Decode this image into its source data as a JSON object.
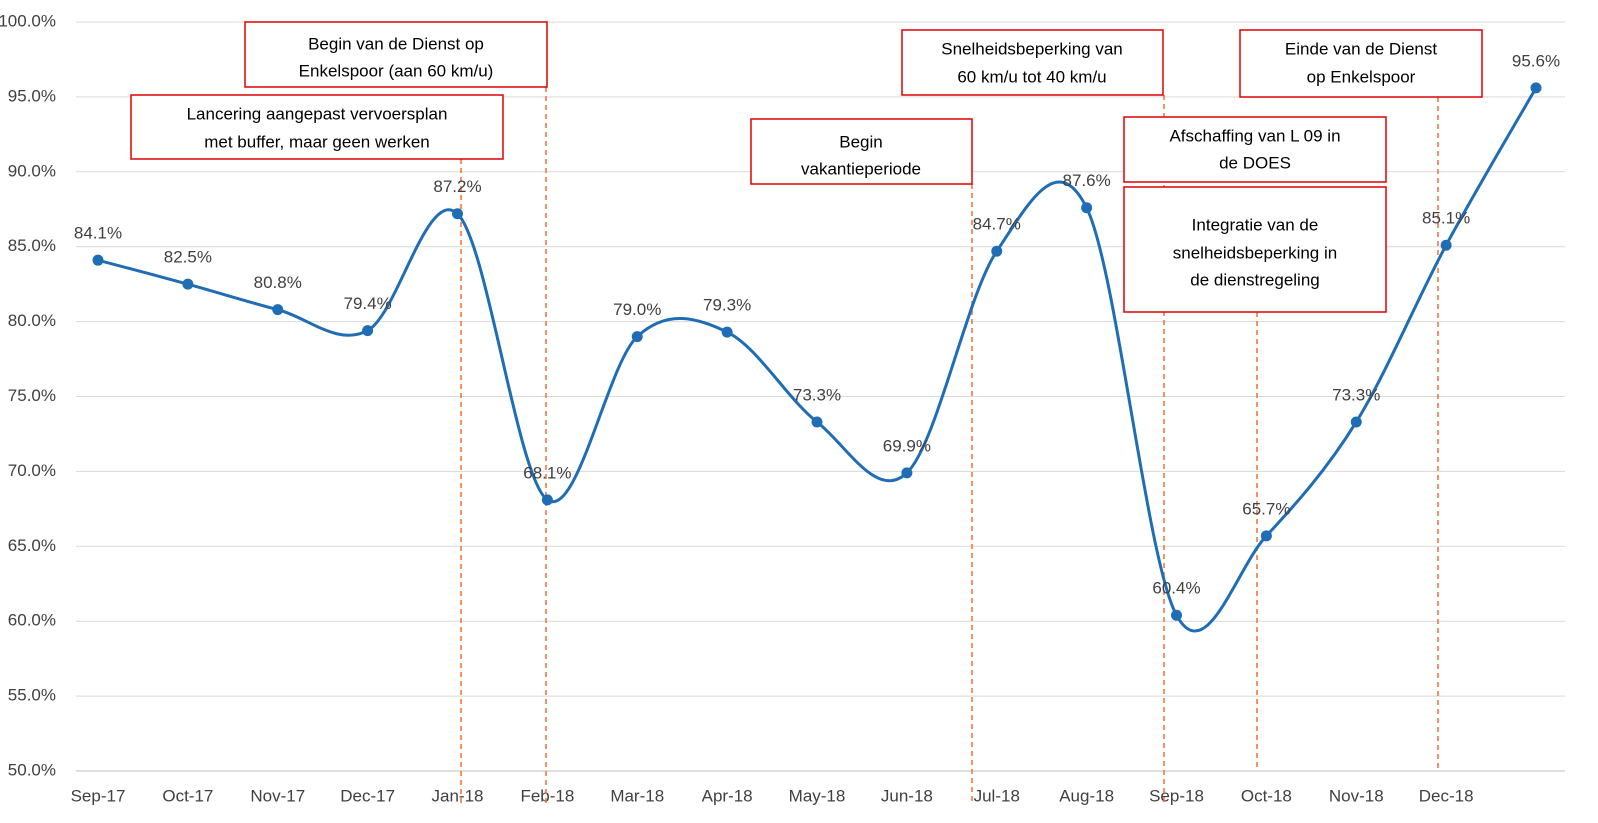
{
  "chart_data": {
    "type": "line",
    "categories": [
      "Sep-17",
      "Oct-17",
      "Nov-17",
      "Dec-17",
      "Jan-18",
      "Feb-18",
      "Mar-18",
      "Apr-18",
      "May-18",
      "Jun-18",
      "Jul-18",
      "Aug-18",
      "Sep-18",
      "Oct-18",
      "Nov-18",
      "Dec-18",
      null
    ],
    "series": [
      {
        "color": "#1f6db5",
        "values": [
          84.1,
          82.5,
          80.8,
          79.4,
          87.2,
          68.1,
          79.0,
          79.3,
          73.3,
          69.9,
          84.7,
          87.6,
          60.4,
          65.7,
          73.3,
          85.1,
          95.6
        ],
        "value_labels": [
          "84.1%",
          "82.5%",
          "80.8%",
          "79.4%",
          "87.2%",
          "68.1%",
          "79.0%",
          "79.3%",
          "73.3%",
          "69.9%",
          "84.7%",
          "87.6%",
          "60.4%",
          "65.7%",
          "73.3%",
          "85.1%",
          "95.6%"
        ]
      }
    ],
    "ylim": [
      50,
      100
    ],
    "yticks": [
      {
        "value": 50,
        "label": "50.0%"
      },
      {
        "value": 55,
        "label": "55.0%"
      },
      {
        "value": 60,
        "label": "60.0%"
      },
      {
        "value": 65,
        "label": "65.0%"
      },
      {
        "value": 70,
        "label": "70.0%"
      },
      {
        "value": 75,
        "label": "75.0%"
      },
      {
        "value": 80,
        "label": "80.0%"
      },
      {
        "value": 85,
        "label": "85.0%"
      },
      {
        "value": 90,
        "label": "90.0%"
      },
      {
        "value": 95,
        "label": "95.0%"
      },
      {
        "value": 100,
        "label": "100.0%"
      }
    ],
    "grid": true,
    "annotations": [
      {
        "lines": [
          "Begin van de Dienst op",
          "Enkelspoor (aan 60 km/u)"
        ]
      },
      {
        "lines": [
          "Lancering aangepast vervoersplan",
          "met buffer, maar geen werken"
        ]
      },
      {
        "lines": [
          "Begin",
          "vakantieperiode"
        ]
      },
      {
        "lines": [
          "Snelheidsbeperking van",
          "60 km/u tot 40 km/u"
        ]
      },
      {
        "lines": [
          "Einde van de Dienst",
          "op Enkelspoor"
        ]
      },
      {
        "lines": [
          "Afschaffing van L 09 in",
          "de DOES"
        ]
      },
      {
        "lines": [
          "Integratie van de",
          "snelheidsbeperking in",
          "de dienstregeling"
        ]
      }
    ]
  }
}
